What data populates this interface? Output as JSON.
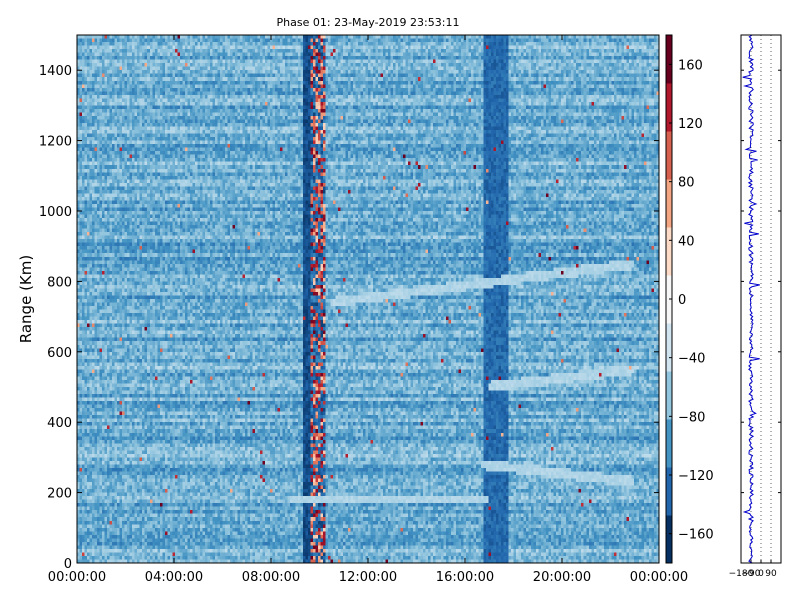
{
  "chart_data": [
    {
      "type": "heatmap",
      "title": "Phase 01: 23-May-2019 23:53:11",
      "xlabel": "",
      "ylabel": "Range (Km)",
      "x_tick_labels": [
        "00:00:00",
        "04:00:00",
        "08:00:00",
        "12:00:00",
        "16:00:00",
        "20:00:00",
        "00:00:00"
      ],
      "x_tick_hours": [
        0,
        4,
        8,
        12,
        16,
        20,
        24
      ],
      "xlim_hours": [
        0,
        24
      ],
      "y_ticks": [
        0,
        200,
        400,
        600,
        800,
        1000,
        1200,
        1400
      ],
      "ylim": [
        0,
        1500
      ],
      "colorbar": {
        "ticks": [
          160,
          120,
          80,
          40,
          0,
          -40,
          -80,
          -120,
          -160
        ],
        "range": [
          -180,
          180
        ],
        "colormap": "RdBu_r",
        "colors": [
          "#053061",
          "#2166ac",
          "#4393c3",
          "#92c5de",
          "#d1e5f0",
          "#f7f7f7",
          "#fddbc7",
          "#f4a582",
          "#d6604d",
          "#b2182b",
          "#67001f"
        ]
      },
      "features": [
        {
          "description": "typical phase level",
          "value": -90
        },
        {
          "hours": [
            9.3,
            9.6
          ],
          "level": "dark blue band",
          "value": -160
        },
        {
          "hours": [
            9.6,
            10.2
          ],
          "level": "noisy mixed band",
          "value": "mixed"
        },
        {
          "hours": [
            16.8,
            17.8
          ],
          "level": "darker band",
          "value": -140
        },
        {
          "description": "pale echo trace",
          "range_km": 180,
          "hours": [
            8.8,
            17.0
          ]
        },
        {
          "description": "pale echo trace",
          "range_km": [
            280,
            230
          ],
          "hours": [
            16.7,
            23.0
          ]
        },
        {
          "description": "pale echo trace",
          "range_km": [
            500,
            550
          ],
          "hours": [
            17.0,
            23.0
          ]
        },
        {
          "description": "pale echo trace",
          "range_km": [
            740,
            850
          ],
          "hours": [
            10.5,
            23.0
          ]
        }
      ]
    },
    {
      "type": "line",
      "description": "side profile of phase versus range",
      "x_tick_labels": [
        "−180",
        "−90",
        "0",
        "90"
      ],
      "x_ticks": [
        -180,
        -90,
        0,
        90
      ],
      "xlim": [
        -180,
        180
      ],
      "ylim": [
        0,
        1500
      ],
      "grid": "vertical dotted",
      "line_color": "#0000cc",
      "baseline": -90
    }
  ]
}
